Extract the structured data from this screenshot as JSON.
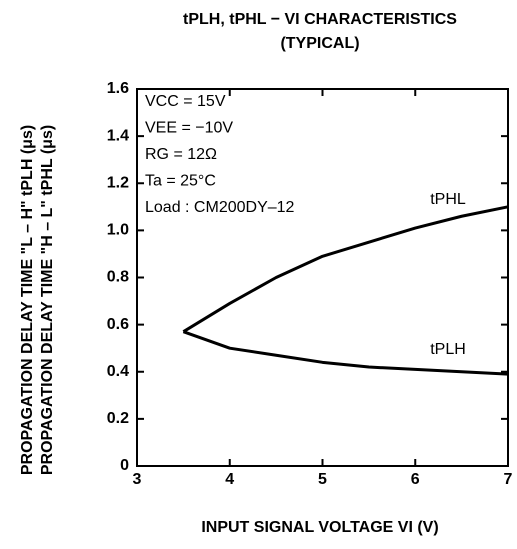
{
  "chart_data": {
    "type": "line",
    "title": "tPLH, tPHL − VI CHARACTERISTICS",
    "subtitle": "(TYPICAL)",
    "xlabel": "INPUT SIGNAL VOLTAGE VI (V)",
    "ylabel": [
      "PROPAGATION DELAY TIME \"L – H\"   tPLH (μs)",
      "PROPAGATION DELAY TIME \"H – L\"   tPHL (μs)"
    ],
    "annotations": [
      "VCC = 15V",
      "VEE = −10V",
      "RG = 12Ω",
      "Ta = 25°C",
      "Load : CM200DY–12"
    ],
    "x": [
      3.5,
      4,
      4.5,
      5,
      5.5,
      6,
      6.5,
      7
    ],
    "series": [
      {
        "name": "tPHL",
        "color": "#000000",
        "values": [
          0.57,
          0.69,
          0.8,
          0.89,
          0.95,
          1.01,
          1.06,
          1.1
        ]
      },
      {
        "name": "tPLH",
        "color": "#000000",
        "values": [
          0.57,
          0.5,
          0.47,
          0.44,
          0.42,
          0.41,
          0.4,
          0.39
        ]
      }
    ],
    "xlim": [
      3,
      7
    ],
    "xticks": [
      3,
      4,
      5,
      6,
      7
    ],
    "ylim": [
      0,
      1.6
    ],
    "yticks": [
      0,
      0.2,
      0.4,
      0.6,
      0.8,
      {
        "value": 1,
        "label": "1.0"
      },
      1.2,
      1.4,
      1.6
    ],
    "grid": false
  }
}
